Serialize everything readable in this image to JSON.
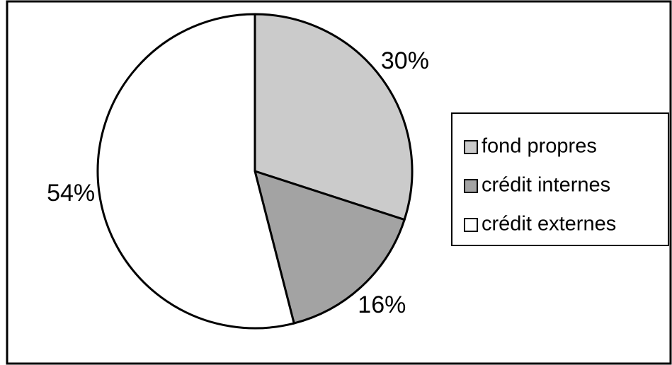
{
  "chart_data": {
    "type": "pie",
    "categories": [
      "fond propres",
      "crédit internes",
      "crédit externes"
    ],
    "values": [
      30,
      16,
      54
    ],
    "value_labels": [
      "30%",
      "16%",
      "54%"
    ],
    "colors": [
      "#cbcbcb",
      "#a3a3a3",
      "#ffffff"
    ],
    "legend": "right"
  }
}
